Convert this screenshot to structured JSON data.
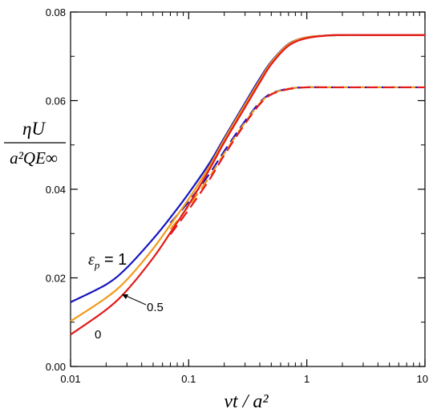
{
  "chart_data": {
    "type": "line",
    "x_scale": "log",
    "xlim": [
      0.01,
      10
    ],
    "ylim": [
      0.0,
      0.08
    ],
    "x_ticks": [
      "0.01",
      "0.1",
      "1",
      "10"
    ],
    "y_ticks": [
      "0.00",
      "0.02",
      "0.04",
      "0.06",
      "0.08"
    ],
    "xlabel": "νt / a²",
    "ylabel_numerator": "ηU",
    "ylabel_denominator": "a²QE∞",
    "grid": false,
    "series": [
      {
        "name": "1",
        "color": "#1515c0",
        "style": "solid",
        "x": [
          0.01,
          0.02,
          0.03,
          0.05,
          0.07,
          0.1,
          0.15,
          0.2,
          0.3,
          0.4,
          0.5,
          0.7,
          1,
          1.5,
          2,
          3,
          5,
          10
        ],
        "y": [
          0.0145,
          0.0185,
          0.0223,
          0.0288,
          0.0336,
          0.0391,
          0.0459,
          0.0516,
          0.0595,
          0.065,
          0.0688,
          0.0728,
          0.0743,
          0.0747,
          0.0748,
          0.0748,
          0.0748,
          0.0748
        ]
      },
      {
        "name": "0.5",
        "color": "#f29a1a",
        "style": "solid",
        "x": [
          0.01,
          0.02,
          0.03,
          0.05,
          0.07,
          0.1,
          0.15,
          0.2,
          0.3,
          0.4,
          0.5,
          0.7,
          1,
          1.5,
          2,
          3,
          5,
          10
        ],
        "y": [
          0.0102,
          0.0155,
          0.0196,
          0.0266,
          0.032,
          0.0378,
          0.0452,
          0.0512,
          0.0591,
          0.0646,
          0.0686,
          0.0727,
          0.0743,
          0.0747,
          0.0748,
          0.0748,
          0.0748,
          0.0748
        ]
      },
      {
        "name": "0",
        "color": "#e31919",
        "style": "solid",
        "x": [
          0.01,
          0.02,
          0.03,
          0.05,
          0.07,
          0.1,
          0.15,
          0.2,
          0.3,
          0.4,
          0.5,
          0.7,
          1,
          1.5,
          2,
          3,
          5,
          10
        ],
        "y": [
          0.0072,
          0.0128,
          0.0172,
          0.0245,
          0.0302,
          0.0365,
          0.0445,
          0.0506,
          0.0585,
          0.0641,
          0.0682,
          0.0724,
          0.0741,
          0.0747,
          0.0748,
          0.0748,
          0.0748,
          0.0748
        ]
      },
      {
        "color": "#1515c0",
        "style": "dashed",
        "x": [
          0.07,
          0.1,
          0.15,
          0.2,
          0.3,
          0.4,
          0.5,
          0.7,
          1,
          1.5,
          2,
          3,
          5,
          10
        ],
        "y": [
          0.0324,
          0.0372,
          0.0435,
          0.0486,
          0.0554,
          0.0596,
          0.0616,
          0.0627,
          0.063,
          0.063,
          0.063,
          0.063,
          0.063,
          0.063
        ]
      },
      {
        "color": "#f29a1a",
        "style": "dashed",
        "x": [
          0.07,
          0.1,
          0.15,
          0.2,
          0.3,
          0.4,
          0.5,
          0.7,
          1,
          1.5,
          2,
          3,
          5,
          10
        ],
        "y": [
          0.031,
          0.0362,
          0.0428,
          0.0481,
          0.0551,
          0.0594,
          0.0615,
          0.0627,
          0.063,
          0.063,
          0.063,
          0.063,
          0.063,
          0.063
        ]
      },
      {
        "color": "#e31919",
        "style": "dashed",
        "x": [
          0.07,
          0.1,
          0.15,
          0.2,
          0.3,
          0.4,
          0.5,
          0.7,
          1,
          1.5,
          2,
          3,
          5,
          10
        ],
        "y": [
          0.0298,
          0.0354,
          0.0422,
          0.0477,
          0.0548,
          0.0592,
          0.0614,
          0.0626,
          0.063,
          0.063,
          0.063,
          0.063,
          0.063,
          0.063
        ]
      }
    ],
    "annotations": [
      {
        "symbol": "ε",
        "subscript": "p",
        "text": " = 1",
        "target_series": "1"
      },
      {
        "text": "0.5",
        "target_series": "0.5"
      },
      {
        "text": "0",
        "target_series": "0"
      }
    ]
  }
}
